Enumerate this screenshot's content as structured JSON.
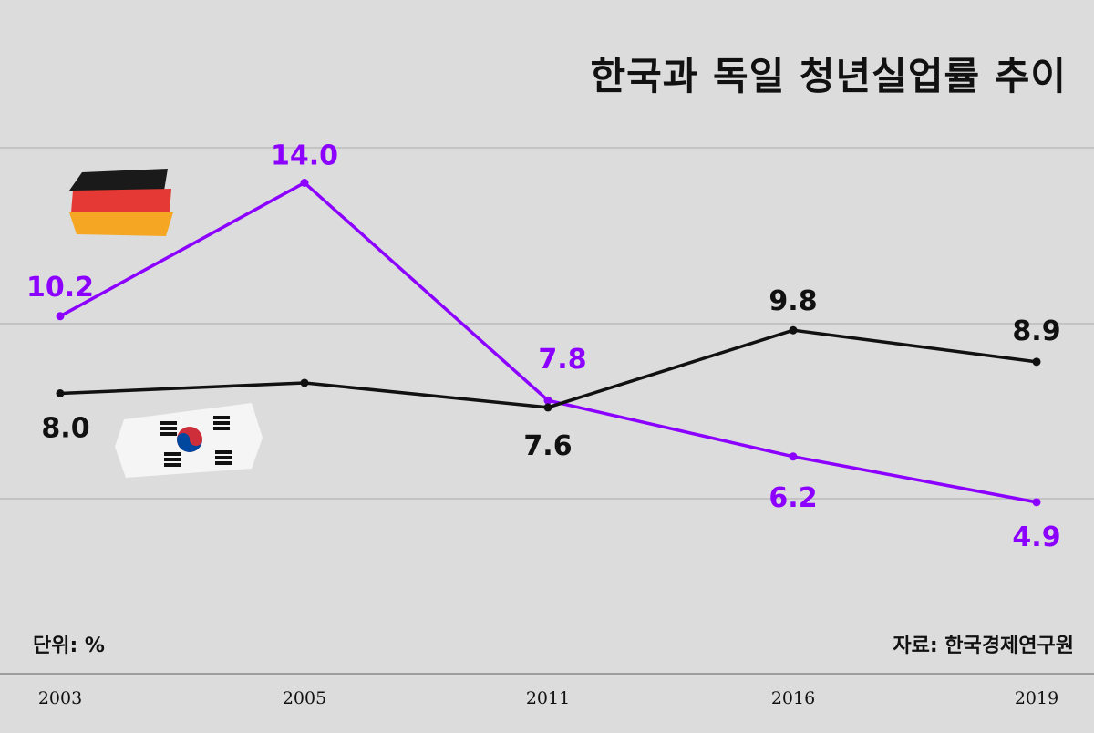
{
  "title": "한국과 독일 청년실업률 추이",
  "unit_label": "단위: %",
  "source_label": "자료: 한국경제연구원",
  "flags": {
    "germany": "germany-flag-icon",
    "korea": "korea-flag-icon"
  },
  "colors": {
    "germany": "#8b00ff",
    "korea": "#111111",
    "background": "#dcdcdc",
    "grid": "#aaaaaa"
  },
  "chart_data": {
    "type": "line",
    "title": "한국과 독일 청년실업률 추이",
    "xlabel": "",
    "ylabel": "",
    "categories": [
      "2003",
      "2005",
      "2011",
      "2016",
      "2019"
    ],
    "ylim": [
      0,
      16
    ],
    "grid": "horizontal",
    "series": [
      {
        "key": "germany",
        "values": [
          10.2,
          14.0,
          7.8,
          6.2,
          4.9
        ],
        "labels": [
          "10.2",
          "14.0",
          "7.8",
          "6.2",
          "4.9"
        ],
        "color": "#8b00ff"
      },
      {
        "key": "korea",
        "values": [
          8.0,
          8.3,
          7.6,
          9.8,
          8.9
        ],
        "labels": [
          "8.0",
          "",
          "7.6",
          "9.8",
          "8.9"
        ],
        "color": "#111111"
      }
    ]
  }
}
